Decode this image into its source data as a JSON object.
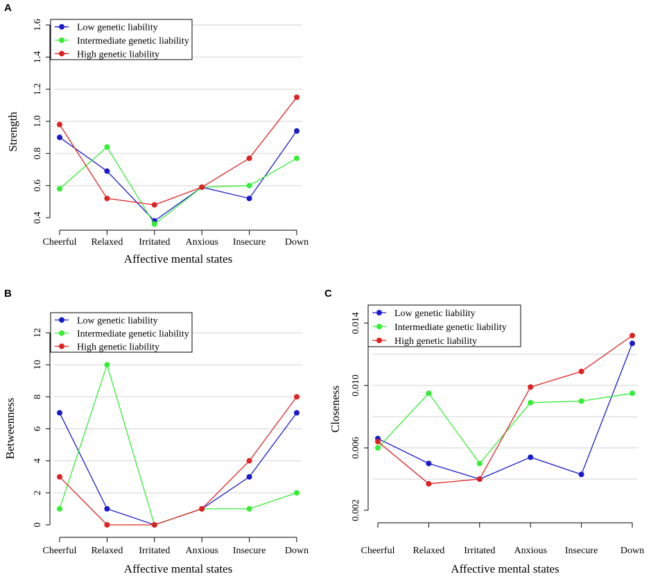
{
  "series_colors": {
    "low": "#1a1acc",
    "intermediate": "#33ee33",
    "high": "#dd2222"
  },
  "chart_data": [
    {
      "panel": "A",
      "type": "line",
      "categories": [
        "Cheerful",
        "Relaxed",
        "Irritated",
        "Anxious",
        "Insecure",
        "Down"
      ],
      "xlabel": "Affective mental states",
      "ylabel": "Strength",
      "ylim": [
        0.4,
        1.6
      ],
      "yticks": [
        0.4,
        0.6,
        0.8,
        1.0,
        1.2,
        1.4,
        1.6
      ],
      "ytick_labels": [
        "0.4",
        "0.6",
        "0.8",
        "1.0",
        "1.2",
        "1.4",
        "1.6"
      ],
      "grid": true,
      "legend": "top-left",
      "series": [
        {
          "key": "low",
          "name": "Low genetic liability",
          "values": [
            0.9,
            0.69,
            0.38,
            0.59,
            0.52,
            0.94
          ]
        },
        {
          "key": "intermediate",
          "name": "Intermediate genetic liability",
          "values": [
            0.58,
            0.84,
            0.36,
            0.59,
            0.6,
            0.77
          ]
        },
        {
          "key": "high",
          "name": "High genetic liability",
          "values": [
            0.98,
            0.52,
            0.48,
            0.59,
            0.77,
            1.15
          ]
        }
      ]
    },
    {
      "panel": "B",
      "type": "line",
      "categories": [
        "Cheerful",
        "Relaxed",
        "Irritated",
        "Anxious",
        "Insecure",
        "Down"
      ],
      "xlabel": "Affective mental states",
      "ylabel": "Betweenness",
      "ylim": [
        0,
        12
      ],
      "yticks": [
        0,
        2,
        4,
        6,
        8,
        10,
        12
      ],
      "ytick_labels": [
        "0",
        "2",
        "4",
        "6",
        "8",
        "10",
        "12"
      ],
      "grid": true,
      "legend": "top-left",
      "series": [
        {
          "key": "low",
          "name": "Low genetic liability",
          "values": [
            7,
            1,
            0,
            1,
            3,
            7
          ]
        },
        {
          "key": "intermediate",
          "name": "Intermediate genetic liability",
          "values": [
            1,
            10,
            0,
            1,
            1,
            2
          ]
        },
        {
          "key": "high",
          "name": "High genetic liability",
          "values": [
            3,
            0,
            0,
            1,
            4,
            8
          ]
        }
      ]
    },
    {
      "panel": "C",
      "type": "line",
      "categories": [
        "Cheerful",
        "Relaxed",
        "Irritated",
        "Anxious",
        "Insecure",
        "Down"
      ],
      "xlabel": "Affective mental states",
      "ylabel": "Closeness",
      "ylim": [
        0.002,
        0.014
      ],
      "yticks": [
        0.002,
        0.006,
        0.01,
        0.014
      ],
      "ytick_labels": [
        "0.002",
        "0.006",
        "0.010",
        "0.014"
      ],
      "grid_values": [
        0.004,
        0.006,
        0.008,
        0.01,
        0.012
      ],
      "grid": true,
      "legend": "top-left",
      "series": [
        {
          "key": "low",
          "name": "Low genetic liability",
          "values": [
            0.0066,
            0.005,
            0.004,
            0.0054,
            0.0043,
            0.0127
          ]
        },
        {
          "key": "intermediate",
          "name": "Intermediate genetic liability",
          "values": [
            0.006,
            0.0095,
            0.005,
            0.0089,
            0.009,
            0.0095
          ]
        },
        {
          "key": "high",
          "name": "High genetic liability",
          "values": [
            0.0064,
            0.0037,
            0.004,
            0.0099,
            0.0109,
            0.0132
          ]
        }
      ]
    }
  ]
}
